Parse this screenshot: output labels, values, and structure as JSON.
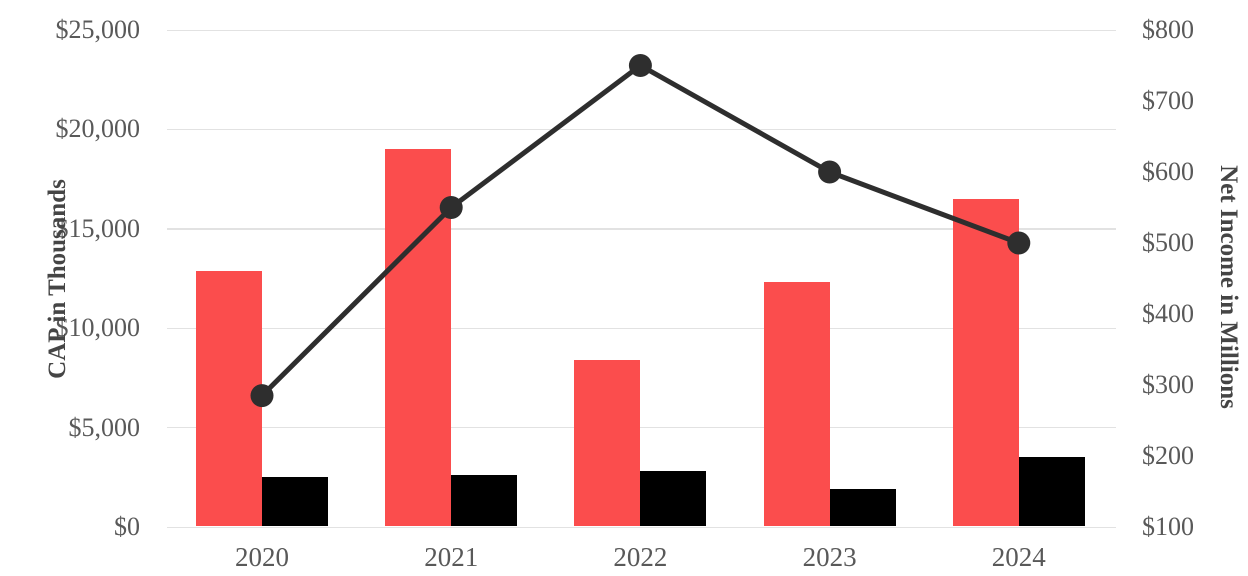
{
  "chart_data": {
    "type": "bar",
    "subtype": "combo-bar-line-dual-axis",
    "categories": [
      "2020",
      "2021",
      "2022",
      "2023",
      "2024"
    ],
    "series": [
      {
        "name": "CAP red bars (left axis, $ thousands)",
        "kind": "bar",
        "axis": "left",
        "color": "#fb4d4d",
        "values": [
          12900,
          19000,
          8400,
          12300,
          16500
        ]
      },
      {
        "name": "CAP black bars (left axis, $ thousands)",
        "kind": "bar",
        "axis": "left",
        "color": "#000000",
        "values": [
          2500,
          2600,
          2800,
          1900,
          3500
        ]
      },
      {
        "name": "Net Income (line, right axis, $ millions)",
        "kind": "line",
        "axis": "right",
        "color": "#2e2e2e",
        "values": [
          285,
          550,
          750,
          600,
          500
        ]
      }
    ],
    "left_axis": {
      "label": "CAP in Thousands",
      "min": 0,
      "max": 25000,
      "tick_values": [
        0,
        5000,
        10000,
        15000,
        20000,
        25000
      ],
      "tick_labels": [
        "$0",
        "$5,000",
        "$10,000",
        "$15,000",
        "$20,000",
        "$25,000"
      ]
    },
    "right_axis": {
      "label": "Net Income in Millions",
      "min": 100,
      "max": 800,
      "tick_values": [
        100,
        200,
        300,
        400,
        500,
        600,
        700,
        800
      ],
      "tick_labels": [
        "$100",
        "$200",
        "$300",
        "$400",
        "$500",
        "$600",
        "$700",
        "$800"
      ]
    },
    "grid": true,
    "legend": false,
    "colors": {
      "gridline": "#e2e2e2",
      "tick_text": "#595959",
      "axis_title_text": "#454545",
      "background": "#ffffff"
    }
  }
}
